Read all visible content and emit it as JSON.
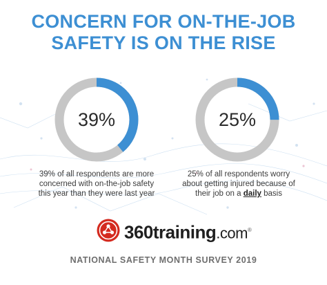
{
  "header": {
    "title_line1": "CONCERN FOR ON-THE-JOB",
    "title_line2": "SAFETY IS ON THE RISE"
  },
  "chart_data": [
    {
      "type": "pie",
      "value_percent": 39,
      "label": "39%",
      "caption_lines": [
        "39% of all respondents are more",
        "concerned with on-the-job safety",
        "this year than they were last year"
      ]
    },
    {
      "type": "pie",
      "value_percent": 25,
      "label": "25%",
      "caption_lines": [
        "25% of all respondents worry",
        "about getting injured because of"
      ],
      "caption_line3_prefix": "their job on a ",
      "caption_line3_emphasis": "daily",
      "caption_line3_suffix": " basis"
    }
  ],
  "colors": {
    "accent": "#3d8fd3",
    "ring_track": "#c6c6c6",
    "logo_red": "#d42a1f"
  },
  "logo": {
    "brand": "360training",
    "tld": ".com",
    "registered": "®"
  },
  "footer": {
    "text": "NATIONAL SAFETY MONTH SURVEY 2019"
  }
}
